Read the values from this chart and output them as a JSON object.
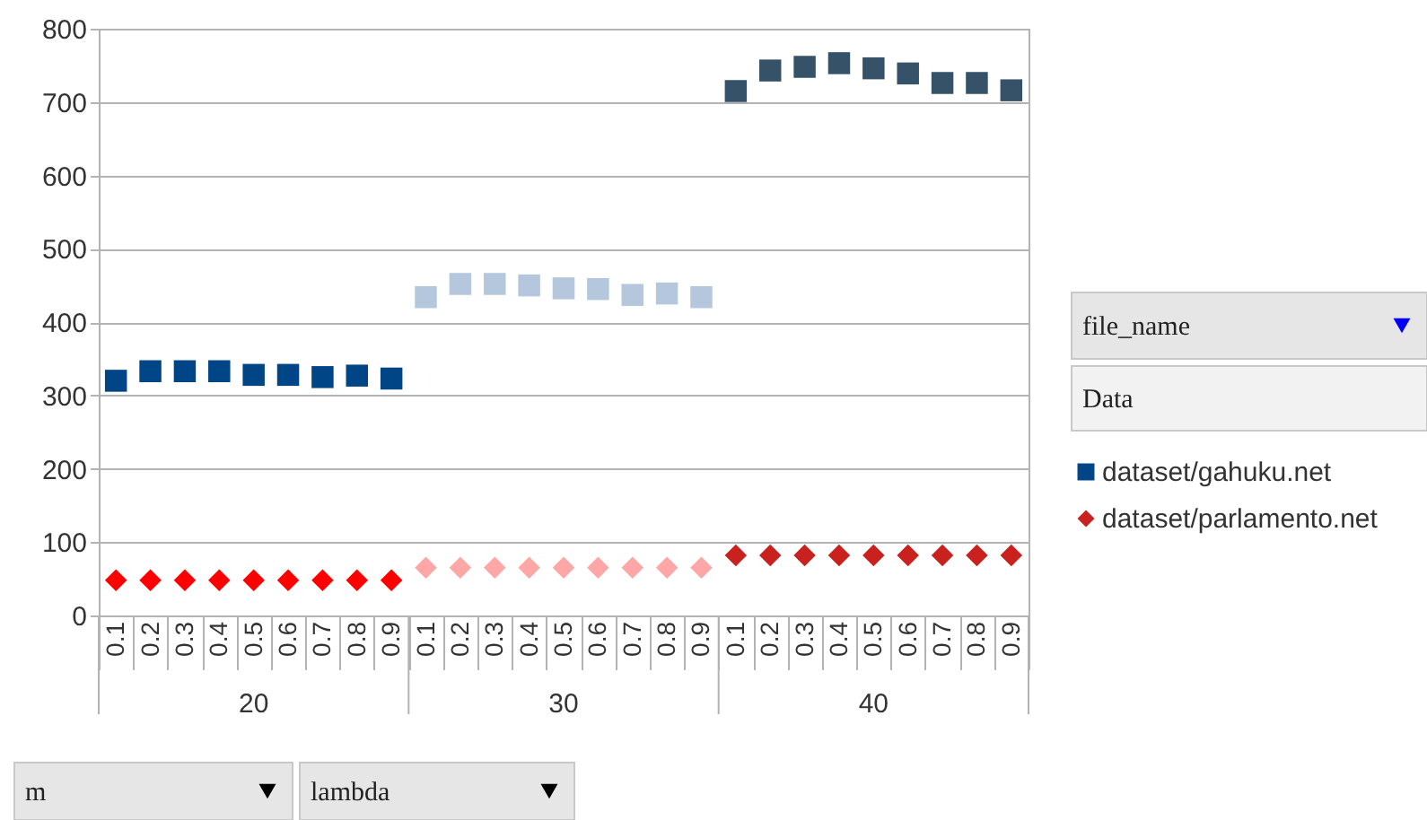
{
  "chart_data": {
    "type": "scatter",
    "categories": [
      "0.1",
      "0.2",
      "0.3",
      "0.4",
      "0.5",
      "0.6",
      "0.7",
      "0.8",
      "0.9",
      "0.1",
      "0.2",
      "0.3",
      "0.4",
      "0.5",
      "0.6",
      "0.7",
      "0.8",
      "0.9",
      "0.1",
      "0.2",
      "0.3",
      "0.4",
      "0.5",
      "0.6",
      "0.7",
      "0.8",
      "0.9"
    ],
    "series": [
      {
        "name": "dataset/gahuku.net",
        "color": "#004586",
        "marker": "square",
        "values": [
          320,
          333,
          333,
          333,
          328,
          328,
          325,
          327,
          323,
          434,
          452,
          452,
          450,
          446,
          445,
          437,
          439,
          434,
          715,
          743,
          748,
          753,
          746,
          739,
          726,
          726,
          716
        ],
        "colors": [
          "#004586",
          "#004586",
          "#004586",
          "#004586",
          "#004586",
          "#004586",
          "#004586",
          "#004586",
          "#004586",
          "#b4c7dc",
          "#b4c7dc",
          "#b4c7dc",
          "#b4c7dc",
          "#b4c7dc",
          "#b4c7dc",
          "#b4c7dc",
          "#b4c7dc",
          "#b4c7dc",
          "#355269",
          "#355269",
          "#355269",
          "#355269",
          "#355269",
          "#355269",
          "#355269",
          "#355269",
          "#355269"
        ]
      },
      {
        "name": "dataset/parlamento.net",
        "color": "#c9211e",
        "marker": "diamond",
        "values": [
          48,
          48,
          48,
          48,
          48,
          48,
          48,
          48,
          48,
          65,
          65,
          65,
          65,
          65,
          65,
          65,
          65,
          65,
          82,
          82,
          82,
          82,
          82,
          82,
          82,
          82,
          82
        ],
        "colors": [
          "#ff0000",
          "#ff0000",
          "#ff0000",
          "#ff0000",
          "#ff0000",
          "#ff0000",
          "#ff0000",
          "#ff0000",
          "#ff0000",
          "#ffa6a6",
          "#ffa6a6",
          "#ffa6a6",
          "#ffa6a6",
          "#ffa6a6",
          "#ffa6a6",
          "#ffa6a6",
          "#ffa6a6",
          "#ffa6a6",
          "#c9211e",
          "#c9211e",
          "#c9211e",
          "#c9211e",
          "#c9211e",
          "#c9211e",
          "#c9211e",
          "#c9211e",
          "#c9211e"
        ]
      }
    ],
    "ylim": [
      0,
      800
    ],
    "yticks": [
      0,
      100,
      200,
      300,
      400,
      500,
      600,
      700,
      800
    ],
    "grid": "y",
    "legend": "right",
    "annotations": [
      "20",
      "30",
      "40",
      "file_name",
      "Data",
      "m",
      "lambda"
    ]
  }
}
